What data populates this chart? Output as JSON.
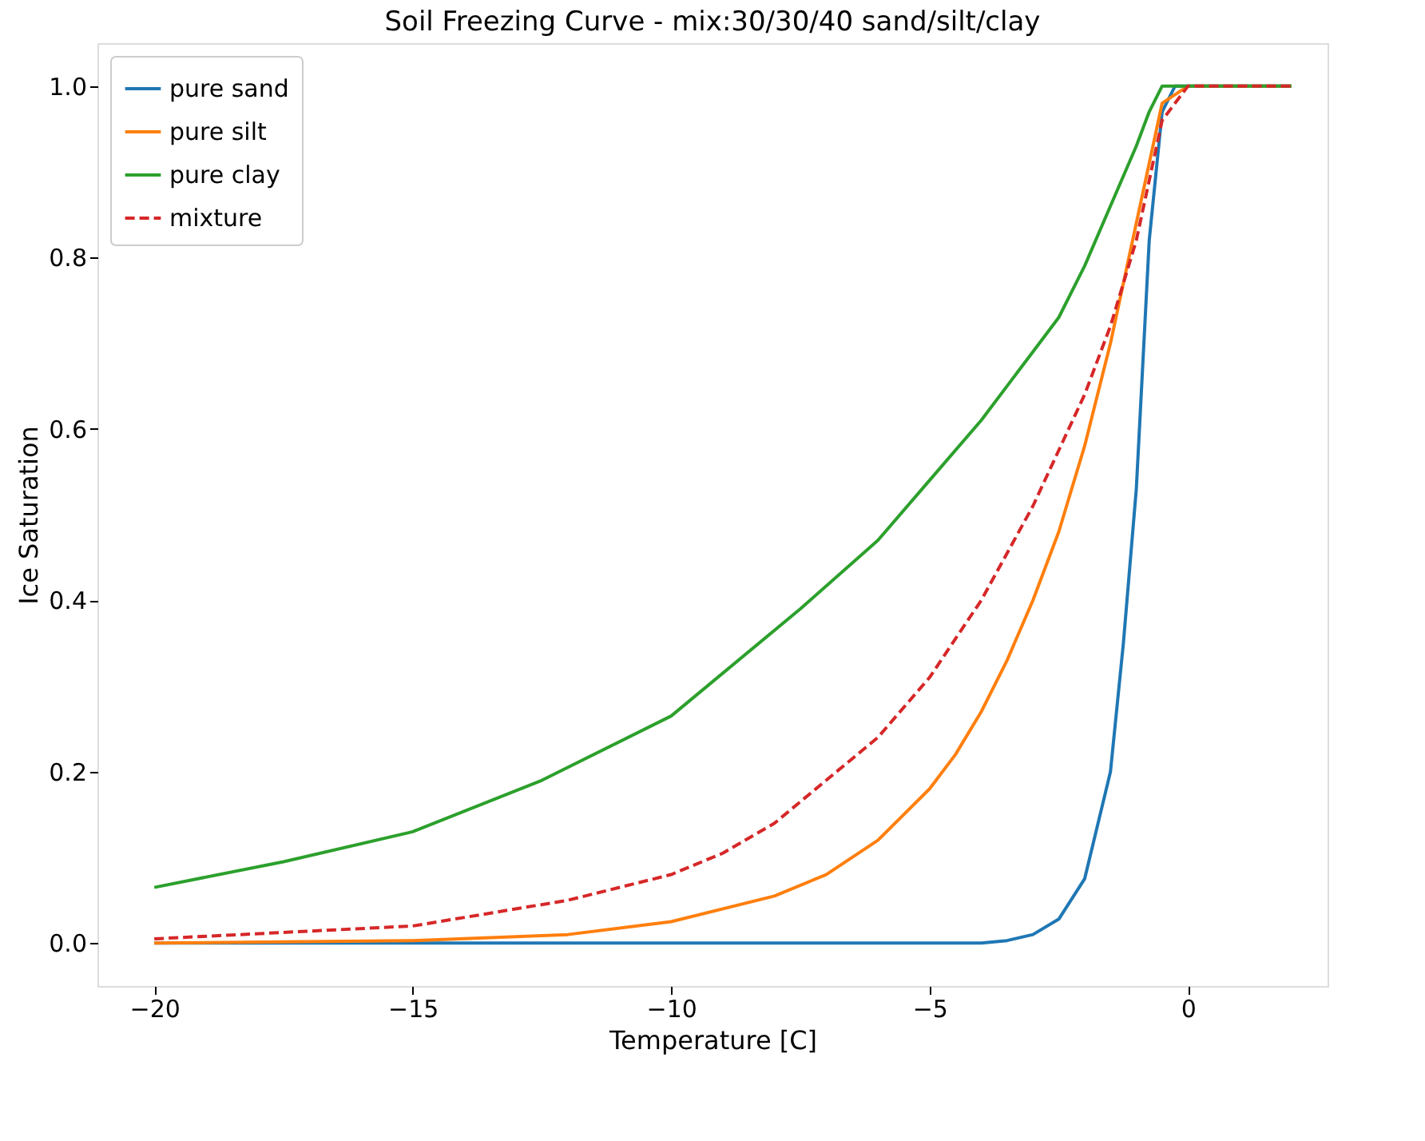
{
  "chart_data": {
    "type": "line",
    "title": "Soil Freezing Curve - mix:30/30/40 sand/silt/clay",
    "xlabel": "Temperature [C]",
    "ylabel": "Ice Saturation",
    "xlim": [
      -21.1,
      2.7
    ],
    "ylim": [
      -0.05,
      1.05
    ],
    "xticks": [
      {
        "value": -20,
        "label": "−20"
      },
      {
        "value": -15,
        "label": "−15"
      },
      {
        "value": -10,
        "label": "−10"
      },
      {
        "value": -5,
        "label": "−5"
      },
      0
    ],
    "yticks": [
      {
        "value": 0,
        "label": "0.0"
      },
      0.2,
      0.4,
      0.6,
      0.8,
      {
        "value": 1,
        "label": "1.0"
      }
    ],
    "grid": false,
    "legend": "top left",
    "marker": "none",
    "series": [
      {
        "name": "pure sand",
        "color": "#1f77b4",
        "line_style": "solid",
        "x": [
          -20,
          -15,
          -10,
          -5,
          -4,
          -3.5,
          -3,
          -2.5,
          -2,
          -1.5,
          -1.25,
          -1,
          -0.75,
          -0.5,
          -0.25,
          0,
          2
        ],
        "values": [
          0,
          0,
          0,
          0,
          0,
          0.003,
          0.01,
          0.028,
          0.075,
          0.2,
          0.35,
          0.53,
          0.82,
          0.97,
          1.0,
          1.0,
          1.0
        ]
      },
      {
        "name": "pure silt",
        "color": "#ff7f0e",
        "line_style": "solid",
        "x": [
          -20,
          -15,
          -12,
          -10,
          -8,
          -7,
          -6,
          -5,
          -4.5,
          -4,
          -3.5,
          -3,
          -2.5,
          -2,
          -1.5,
          -1,
          -0.5,
          0,
          2
        ],
        "values": [
          0,
          0.003,
          0.01,
          0.025,
          0.055,
          0.08,
          0.12,
          0.18,
          0.22,
          0.27,
          0.33,
          0.4,
          0.48,
          0.58,
          0.7,
          0.84,
          0.98,
          1.0,
          1.0
        ]
      },
      {
        "name": "pure clay",
        "color": "#2ca02c",
        "line_style": "solid",
        "x": [
          -20,
          -17.5,
          -15,
          -12.5,
          -10,
          -7.5,
          -6,
          -5,
          -4,
          -3,
          -2.5,
          -2,
          -1.5,
          -1,
          -0.75,
          -0.5,
          0,
          2
        ],
        "values": [
          0.065,
          0.095,
          0.13,
          0.19,
          0.265,
          0.39,
          0.47,
          0.54,
          0.61,
          0.69,
          0.73,
          0.79,
          0.86,
          0.93,
          0.97,
          1.0,
          1.0,
          1.0
        ]
      },
      {
        "name": "mixture",
        "color": "#d62728",
        "line_style": "dashed",
        "x": [
          -20,
          -15,
          -12,
          -10,
          -9,
          -8,
          -7,
          -6,
          -5,
          -4,
          -3,
          -2,
          -1.5,
          -1,
          -0.5,
          0,
          2
        ],
        "values": [
          0.005,
          0.02,
          0.05,
          0.08,
          0.105,
          0.14,
          0.19,
          0.24,
          0.31,
          0.4,
          0.51,
          0.64,
          0.72,
          0.82,
          0.96,
          1.0,
          1.0
        ]
      }
    ]
  }
}
